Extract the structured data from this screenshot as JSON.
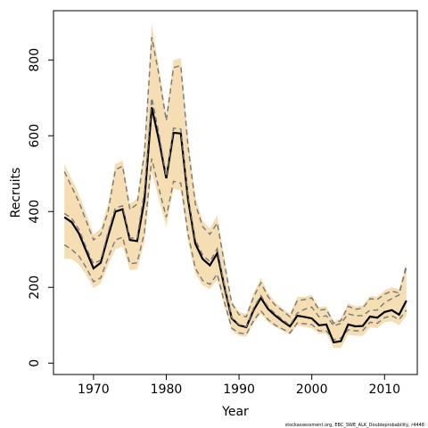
{
  "chart_data": {
    "type": "line",
    "xlabel": "Year",
    "ylabel": "Recruits",
    "footer": "stockassessment.org, EBC_SWE_ALK_Doubleprobability, r4448",
    "xlim": [
      1964.5,
      2014.5
    ],
    "ylim": [
      -30,
      930
    ],
    "x_ticks": [
      1970,
      1980,
      1990,
      2000,
      2010
    ],
    "y_ticks": [
      0,
      200,
      400,
      600,
      800
    ],
    "x_tick_labels": [
      "1970",
      "1980",
      "1990",
      "2000",
      "2010"
    ],
    "y_tick_labels": [
      "0",
      "200",
      "400",
      "600",
      "800"
    ],
    "years": [
      1966,
      1967,
      1968,
      1969,
      1970,
      1971,
      1972,
      1973,
      1974,
      1975,
      1976,
      1977,
      1978,
      1979,
      1980,
      1981,
      1982,
      1983,
      1984,
      1985,
      1986,
      1987,
      1988,
      1989,
      1990,
      1991,
      1992,
      1993,
      1994,
      1995,
      1996,
      1997,
      1998,
      1999,
      2000,
      2001,
      2002,
      2003,
      2004,
      2005,
      2006,
      2007,
      2008,
      2009,
      2010,
      2011,
      2012,
      2013
    ],
    "series": [
      {
        "role": "estimate",
        "color": "#000000",
        "values": [
          385,
          372,
          342,
          296,
          250,
          265,
          335,
          400,
          406,
          325,
          322,
          430,
          675,
          588,
          488,
          608,
          606,
          430,
          315,
          275,
          258,
          290,
          200,
          118,
          100,
          95,
          140,
          172,
          143,
          125,
          110,
          97,
          125,
          122,
          118,
          100,
          102,
          55,
          58,
          102,
          97,
          98,
          123,
          120,
          135,
          140,
          128,
          165
        ]
      },
      {
        "role": "alternative",
        "color": "#777777",
        "dashed": true,
        "values": [
          395,
          382,
          352,
          305,
          262,
          272,
          345,
          410,
          415,
          330,
          330,
          455,
          700,
          605,
          492,
          620,
          618,
          440,
          325,
          285,
          268,
          302,
          205,
          120,
          102,
          96,
          145,
          178,
          148,
          130,
          115,
          100,
          132,
          142,
          148,
          122,
          125,
          98,
          105,
          130,
          125,
          125,
          140,
          140,
          160,
          170,
          180,
          260
        ]
      }
    ],
    "band_upper_outer": [
      525,
      485,
      445,
      395,
      340,
      355,
      420,
      525,
      535,
      420,
      435,
      575,
      895,
      780,
      655,
      800,
      805,
      590,
      440,
      375,
      355,
      390,
      275,
      165,
      135,
      130,
      185,
      225,
      185,
      160,
      145,
      130,
      175,
      175,
      180,
      148,
      150,
      110,
      118,
      158,
      150,
      152,
      178,
      175,
      192,
      200,
      195,
      262
    ],
    "band_lower_outer": [
      275,
      275,
      260,
      232,
      198,
      210,
      258,
      300,
      308,
      245,
      248,
      320,
      505,
      430,
      360,
      460,
      455,
      320,
      235,
      205,
      195,
      220,
      150,
      85,
      72,
      70,
      105,
      130,
      108,
      95,
      85,
      75,
      100,
      95,
      92,
      78,
      78,
      40,
      40,
      75,
      72,
      72,
      95,
      92,
      108,
      110,
      100,
      125
    ],
    "band_upper_dashed": [
      505,
      465,
      425,
      375,
      325,
      340,
      400,
      510,
      520,
      405,
      420,
      555,
      860,
      760,
      640,
      780,
      785,
      570,
      420,
      360,
      340,
      370,
      262,
      158,
      128,
      122,
      175,
      212,
      175,
      152,
      138,
      122,
      165,
      168,
      172,
      140,
      142,
      105,
      112,
      150,
      142,
      145,
      170,
      168,
      182,
      190,
      185,
      252
    ],
    "band_lower_dashed": [
      312,
      300,
      282,
      252,
      215,
      225,
      278,
      325,
      332,
      262,
      265,
      345,
      540,
      460,
      385,
      480,
      475,
      340,
      250,
      218,
      208,
      235,
      160,
      92,
      80,
      76,
      112,
      138,
      115,
      100,
      90,
      80,
      106,
      104,
      102,
      85,
      85,
      62,
      66,
      88,
      85,
      86,
      108,
      105,
      120,
      125,
      115,
      140
    ]
  }
}
